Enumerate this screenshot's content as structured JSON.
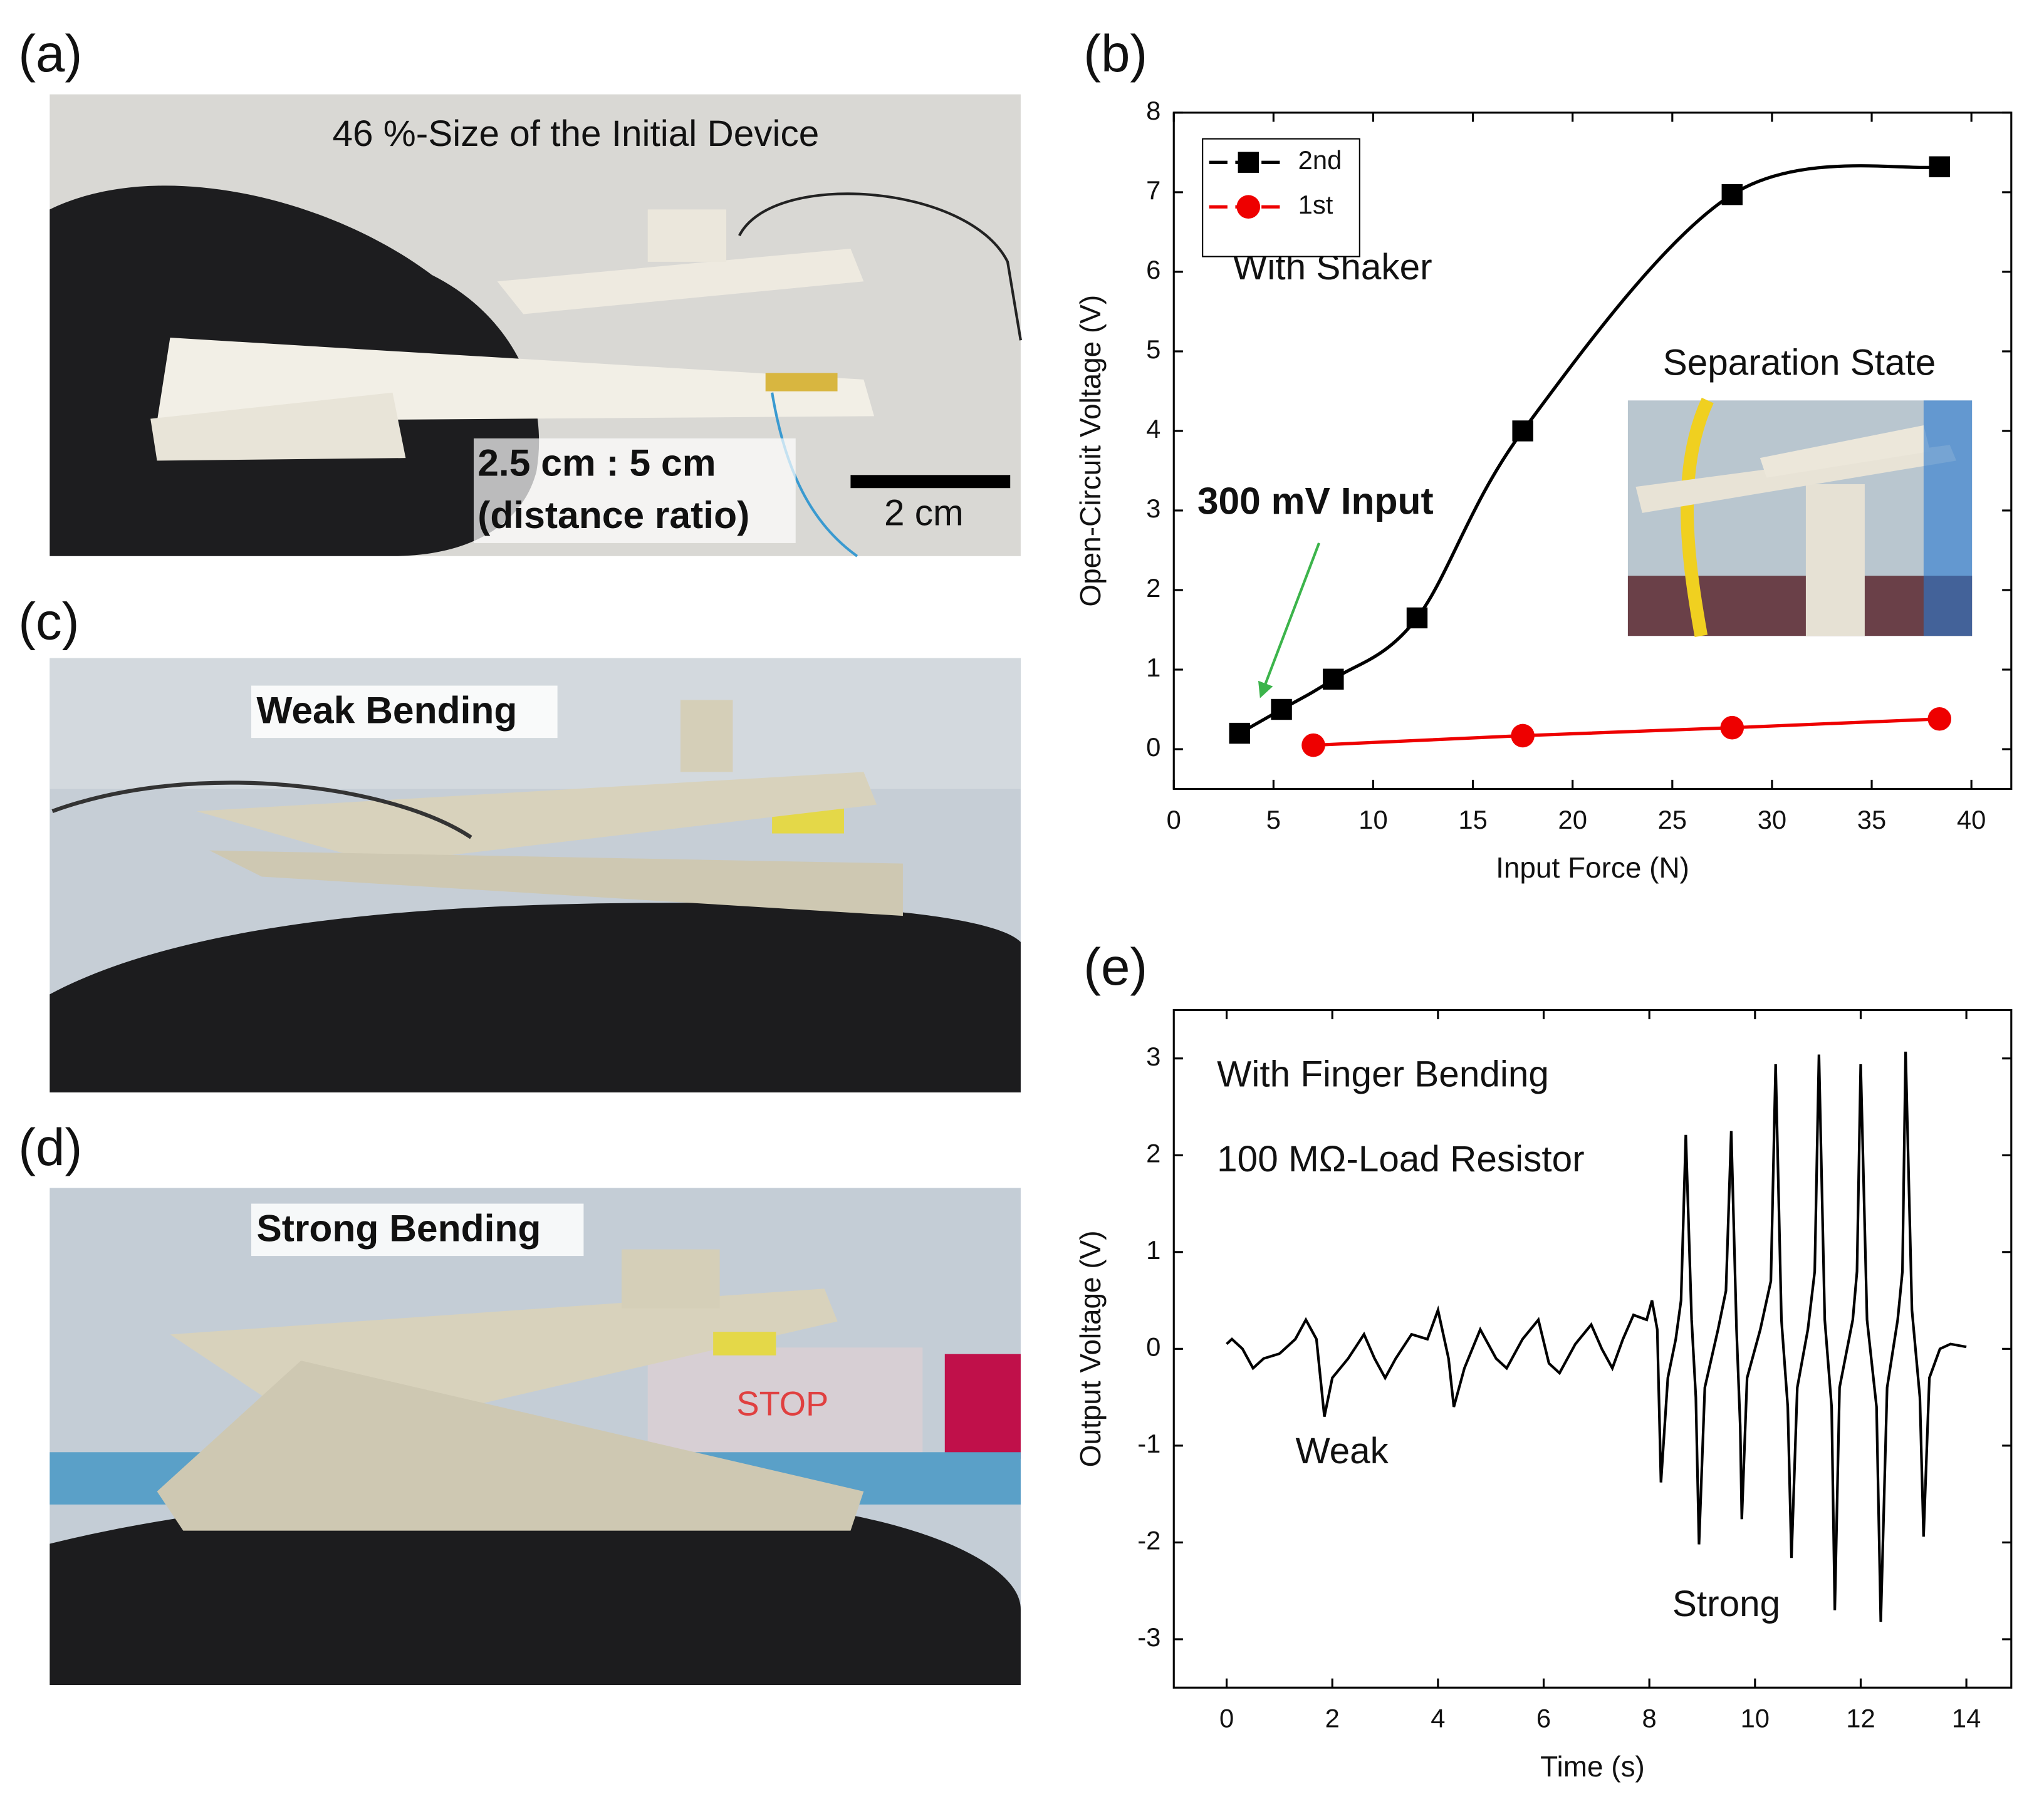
{
  "panels": {
    "a": "(a)",
    "b": "(b)",
    "c": "(c)",
    "d": "(d)",
    "e": "(e)"
  },
  "photos": {
    "a": {
      "caption": "46 %-Size of the Initial Device",
      "ratio": "2.5 cm : 5 cm",
      "ratio_note": "(distance ratio)",
      "scale_bar": "2 cm"
    },
    "c": {
      "caption": "Weak Bending"
    },
    "d": {
      "caption": "Strong Bending",
      "button": "STOP"
    }
  },
  "chart_data": [
    {
      "type": "line",
      "xlabel": "Input Force (N)",
      "ylabel": "Open-Circuit Voltage (V)",
      "xlim": [
        0,
        42
      ],
      "ylim": [
        -0.5,
        8
      ],
      "xticks": [
        0,
        5,
        10,
        15,
        20,
        25,
        30,
        35,
        40
      ],
      "yticks": [
        0,
        1,
        2,
        3,
        4,
        5,
        6,
        7,
        8
      ],
      "legend": "upper left",
      "annotations": [
        "With Shaker",
        "300 mV Input",
        "Separation State"
      ],
      "series": [
        {
          "name": "2nd",
          "color": "#000000",
          "marker": "square",
          "smooth": true,
          "x": [
            3.3,
            5.4,
            8.0,
            12.2,
            17.5,
            28.0,
            38.4
          ],
          "values": [
            0.2,
            0.5,
            0.88,
            1.65,
            4.0,
            6.97,
            7.32
          ]
        },
        {
          "name": "1st",
          "color": "#ee0000",
          "marker": "circle",
          "smooth": false,
          "x": [
            7.0,
            17.5,
            28.0,
            38.4
          ],
          "values": [
            0.05,
            0.17,
            0.27,
            0.38
          ]
        }
      ]
    },
    {
      "type": "line",
      "xlabel": "Time (s)",
      "ylabel": "Output Voltage (V)",
      "xlim": [
        -1,
        14.85
      ],
      "ylim": [
        -3.5,
        3.5
      ],
      "xticks": [
        0,
        2,
        4,
        6,
        8,
        10,
        12,
        14
      ],
      "yticks": [
        -3,
        -2,
        -1,
        0,
        1,
        2,
        3
      ],
      "annotations": [
        "With Finger Bending",
        "100 MΩ-Load Resistor",
        "Weak",
        "Strong"
      ],
      "series": [
        {
          "color": "#000000",
          "marker": "none",
          "smooth": false,
          "x": [
            0,
            0.1,
            0.3,
            0.5,
            0.7,
            1.0,
            1.3,
            1.5,
            1.7,
            1.85,
            2.0,
            2.3,
            2.6,
            2.8,
            3.0,
            3.2,
            3.5,
            3.8,
            4.0,
            4.2,
            4.3,
            4.5,
            4.8,
            5.1,
            5.3,
            5.6,
            5.9,
            6.1,
            6.3,
            6.6,
            6.9,
            7.1,
            7.3,
            7.5,
            7.7,
            7.95,
            8.05,
            8.15,
            8.22,
            8.35,
            8.5,
            8.6,
            8.69,
            8.8,
            8.88,
            8.94,
            9.05,
            9.3,
            9.45,
            9.55,
            9.65,
            9.72,
            9.75,
            9.85,
            10.1,
            10.3,
            10.39,
            10.5,
            10.62,
            10.69,
            10.8,
            11.0,
            11.13,
            11.21,
            11.32,
            11.45,
            11.51,
            11.6,
            11.85,
            11.93,
            12.0,
            12.12,
            12.3,
            12.38,
            12.5,
            12.7,
            12.79,
            12.85,
            12.97,
            13.12,
            13.19,
            13.3,
            13.5,
            13.7,
            14.0
          ],
          "values": [
            0.05,
            0.1,
            0.0,
            -0.2,
            -0.1,
            -0.05,
            0.1,
            0.3,
            0.1,
            -0.7,
            -0.3,
            -0.1,
            0.15,
            -0.1,
            -0.3,
            -0.1,
            0.15,
            0.1,
            0.4,
            -0.1,
            -0.6,
            -0.2,
            0.2,
            -0.1,
            -0.2,
            0.1,
            0.3,
            -0.15,
            -0.25,
            0.05,
            0.25,
            0.0,
            -0.2,
            0.1,
            0.35,
            0.3,
            0.5,
            0.2,
            -1.38,
            -0.3,
            0.1,
            0.5,
            2.21,
            0.3,
            -0.5,
            -2.02,
            -0.4,
            0.2,
            0.6,
            2.25,
            0.2,
            -0.8,
            -1.76,
            -0.3,
            0.2,
            0.7,
            2.94,
            0.3,
            -0.6,
            -2.16,
            -0.4,
            0.2,
            0.8,
            3.04,
            0.3,
            -0.6,
            -2.7,
            -0.4,
            0.3,
            0.8,
            2.94,
            0.3,
            -0.6,
            -2.82,
            -0.4,
            0.3,
            0.8,
            3.07,
            0.4,
            -0.5,
            -1.94,
            -0.3,
            0.0,
            0.05,
            0.02
          ]
        }
      ]
    }
  ]
}
